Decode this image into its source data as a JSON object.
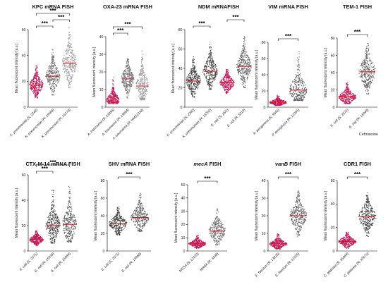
{
  "chart_data": [
    {
      "type": "scatter",
      "title": "KPC mRNA FISH",
      "ylabel": "Mean fluorescent intensity [a.u.]",
      "ylim": [
        0,
        60
      ],
      "yticks": [
        0,
        20,
        40,
        60
      ],
      "categories": [
        "K. pneumoniae (S; 2242)",
        "K. pneumoniae (R; 19666)",
        "K. pneumoniae (R; 16170)"
      ],
      "medians": [
        17,
        24,
        34
      ],
      "spread": [
        [
          7,
          32
        ],
        [
          9,
          45
        ],
        [
          15,
          62
        ]
      ],
      "colors": [
        "#c2185b",
        "#757575",
        "#9e9e9e"
      ],
      "significance": [
        {
          "from": 0,
          "to": 1,
          "label": "***"
        },
        {
          "from": 1,
          "to": 2,
          "label": "***"
        },
        {
          "from": 0,
          "to": 2,
          "label": "***"
        }
      ]
    },
    {
      "type": "scatter",
      "title": "OXA-23 mRNA FISH",
      "ylabel": "Mean fluorescent intensity [a.u.]",
      "ylim": [
        0,
        40
      ],
      "yticks": [
        0,
        10,
        20,
        30,
        40
      ],
      "categories": [
        "A. baumannii (S; 23354)",
        "A. baumannii (R; 19864)",
        "A. baumannii (R; HMS1332)"
      ],
      "medians": [
        4,
        16,
        12
      ],
      "spread": [
        [
          2,
          17
        ],
        [
          5,
          28
        ],
        [
          4,
          34
        ]
      ],
      "colors": [
        "#c2185b",
        "#757575",
        "#9e9e9e"
      ],
      "significance": [
        {
          "from": 0,
          "to": 1,
          "label": "***"
        },
        {
          "from": 0,
          "to": 2,
          "label": "***"
        }
      ]
    },
    {
      "type": "scatter",
      "title": "NDM mRNAFISH",
      "ylabel": "Mean fluorescent intensity [a.u.]",
      "ylim": [
        0,
        80
      ],
      "yticks": [
        0,
        20,
        40,
        60,
        80
      ],
      "categories": [
        "K. pneumoniae (S; 2242)",
        "K. pneumoniae (R; 15702)",
        "E. coli (S; 25/1)",
        "E. coli (R; 5210)"
      ],
      "medians": [
        27,
        37,
        25,
        42
      ],
      "spread": [
        [
          10,
          52
        ],
        [
          18,
          66
        ],
        [
          14,
          40
        ],
        [
          20,
          74
        ]
      ],
      "colors": [
        "#424242",
        "#424242",
        "#c2185b",
        "#616161"
      ],
      "significance": [
        {
          "from": 0,
          "to": 1,
          "label": "***"
        },
        {
          "from": 2,
          "to": 3,
          "label": "***"
        }
      ]
    },
    {
      "type": "scatter",
      "title": "VIM mRNA FISH",
      "ylabel": "Mean fluorescent intensity [a.u.]",
      "ylim": [
        0,
        80
      ],
      "yticks": [
        0,
        20,
        40,
        60,
        80
      ],
      "categories": [
        "P. aeruginosa (S; 9541)",
        "P. aeruginosa (R; 12291)"
      ],
      "medians": [
        6,
        21
      ],
      "spread": [
        [
          2,
          15
        ],
        [
          8,
          70
        ]
      ],
      "colors": [
        "#c2185b",
        "#616161"
      ],
      "significance": [
        {
          "from": 0,
          "to": 1,
          "label": "***"
        }
      ]
    },
    {
      "type": "scatter",
      "title": "TEM-1 FISH",
      "ylabel": "Mean fluorescent intensity [a.u.]",
      "ylim": [
        0,
        80
      ],
      "yticks": [
        0,
        20,
        40,
        60,
        80
      ],
      "categories": [
        "E. coli (S; 2571)",
        "E. coli (R; 16043)"
      ],
      "medians": [
        12,
        41
      ],
      "spread": [
        [
          4,
          30
        ],
        [
          15,
          74
        ]
      ],
      "colors": [
        "#c2185b",
        "#616161"
      ],
      "significance": [
        {
          "from": 0,
          "to": 1,
          "label": "***"
        }
      ],
      "note": "Ceftriaxone"
    },
    {
      "type": "scatter",
      "title": "CTX-M-14 mRNA FISH",
      "ylabel": "Mean fluorescent intensity [a.u.]",
      "ylim": [
        0,
        60
      ],
      "yticks": [
        0,
        20,
        40,
        60
      ],
      "categories": [
        "E. coli (S; 2571)",
        "E. coli (R; 16039)",
        "E. coli (R; 16084)"
      ],
      "medians": [
        9,
        20,
        21
      ],
      "spread": [
        [
          4,
          16
        ],
        [
          6,
          48
        ],
        [
          7,
          52
        ]
      ],
      "colors": [
        "#c2185b",
        "#424242",
        "#616161"
      ],
      "significance": [
        {
          "from": 0,
          "to": 1,
          "label": "***"
        },
        {
          "from": 0,
          "to": 2,
          "label": "***"
        }
      ]
    },
    {
      "type": "scatter",
      "title": "SHV mRNA FISH",
      "ylabel": "Mean fluorescent intensity [a.u.]",
      "ylim": [
        0,
        80
      ],
      "yticks": [
        0,
        20,
        40,
        60,
        80
      ],
      "categories": [
        "E. coli (S; 2571)",
        "E. coli (R; 16059)"
      ],
      "medians": [
        31,
        38
      ],
      "spread": [
        [
          18,
          50
        ],
        [
          22,
          68
        ]
      ],
      "colors": [
        "#424242",
        "#616161"
      ],
      "significance": [
        {
          "from": 0,
          "to": 1,
          "label": "***"
        }
      ]
    },
    {
      "type": "scatter",
      "title": "mecA FISH",
      "title_italic": "mecA",
      "ylabel": "Mean fluorescent intensity [a.u.]",
      "ylim": [
        0,
        50
      ],
      "yticks": [
        0,
        10,
        20,
        30,
        40,
        50
      ],
      "categories": [
        "MSSA (S; 12103)",
        "MRSA (R; 3148)"
      ],
      "medians": [
        5.5,
        15
      ],
      "spread": [
        [
          2,
          12
        ],
        [
          4,
          32
        ]
      ],
      "colors": [
        "#c2185b",
        "#757575"
      ],
      "significance": [
        {
          "from": 0,
          "to": 1,
          "label": "***"
        }
      ]
    },
    {
      "type": "scatter",
      "title": "vanB FISH",
      "title_italic": "vanB",
      "ylabel": "Mean fluorescent intensity [a.u.]",
      "ylim": [
        0,
        40
      ],
      "yticks": [
        0,
        10,
        20,
        30,
        40
      ],
      "categories": [
        "E. faecium (S; 13225)",
        "E. faecium (R; 11525)"
      ],
      "medians": [
        4,
        20
      ],
      "spread": [
        [
          1,
          10
        ],
        [
          8,
          35
        ]
      ],
      "colors": [
        "#c2185b",
        "#616161"
      ],
      "significance": [
        {
          "from": 0,
          "to": 1,
          "label": "***"
        }
      ]
    },
    {
      "type": "scatter",
      "title": "CDR1 FISH",
      "ylabel": "Mean fluorescent intensity [a.u.]",
      "ylim": [
        0,
        60
      ],
      "yticks": [
        0,
        20,
        40,
        60
      ],
      "categories": [
        "C. glabrata (S; 36044)",
        "C. glabrata (R; 30671)"
      ],
      "medians": [
        8,
        29
      ],
      "spread": [
        [
          2,
          17
        ],
        [
          12,
          50
        ]
      ],
      "colors": [
        "#c2185b",
        "#424242"
      ],
      "significance": [
        {
          "from": 0,
          "to": 1,
          "label": "***"
        }
      ]
    }
  ]
}
